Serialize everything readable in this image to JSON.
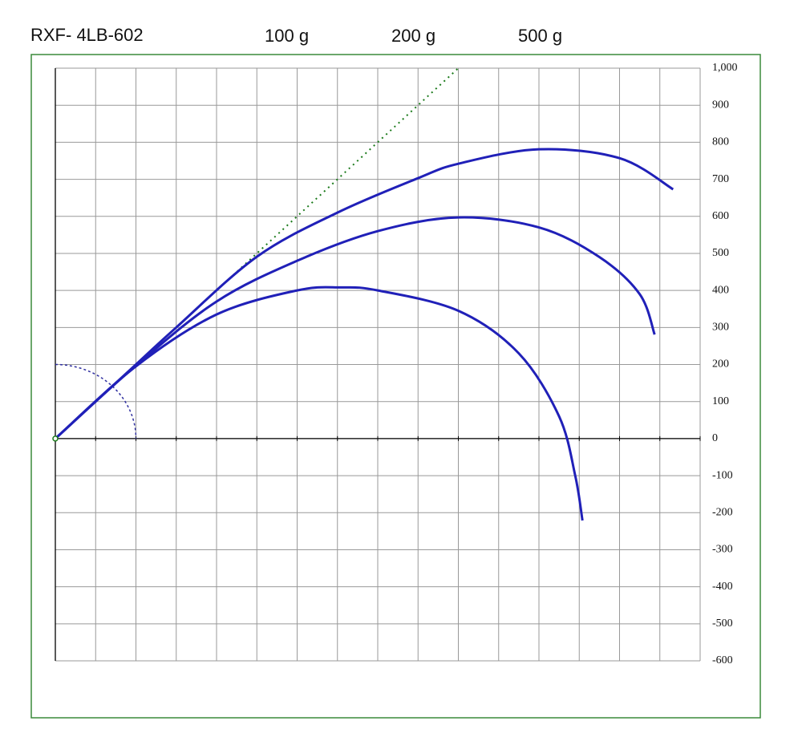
{
  "chart_data": {
    "type": "line",
    "title": "RXF- 4LB-602",
    "xlim": [
      0,
      1600
    ],
    "xticks": [
      0,
      100,
      200,
      300,
      400,
      500,
      600,
      700,
      800,
      900,
      1000,
      1100,
      1200,
      1300,
      1400,
      1500,
      1600
    ],
    "ylim": [
      -600,
      1000
    ],
    "yticks": [
      -600,
      -500,
      -400,
      -300,
      -200,
      -100,
      0,
      100,
      200,
      300,
      400,
      500,
      600,
      700,
      800,
      900,
      {
        "value": 1000,
        "label": "1,000"
      }
    ],
    "grid": true,
    "series": [
      {
        "name": "100 g",
        "color": "#2020b8",
        "x": [
          0,
          200,
          400,
          600,
          708,
          800,
          1000,
          1150,
          1250,
          1290,
          1308
        ],
        "values": [
          0,
          195,
          335,
          400,
          408,
          400,
          345,
          230,
          60,
          -100,
          -221
        ]
      },
      {
        "name": "200 g",
        "color": "#2020b8",
        "x": [
          0,
          200,
          400,
          600,
          800,
          1000,
          1200,
          1350,
          1450,
          1487
        ],
        "values": [
          0,
          197,
          370,
          480,
          560,
          597,
          570,
          490,
          390,
          281
        ]
      },
      {
        "name": "500 g",
        "color": "#2020b8",
        "x": [
          0,
          200,
          300,
          500,
          700,
          900,
          1000,
          1200,
          1400,
          1533
        ],
        "values": [
          0,
          200,
          300,
          491,
          610,
          703,
          742,
          781,
          757,
          673
        ]
      }
    ],
    "reference_line": {
      "color": "#1a7a1a",
      "x": [
        0,
        1000
      ],
      "values": [
        0,
        1000
      ]
    },
    "reference_arc": {
      "color": "#3030a0",
      "radius": 200
    },
    "frame_color": "#3a8a3a"
  }
}
